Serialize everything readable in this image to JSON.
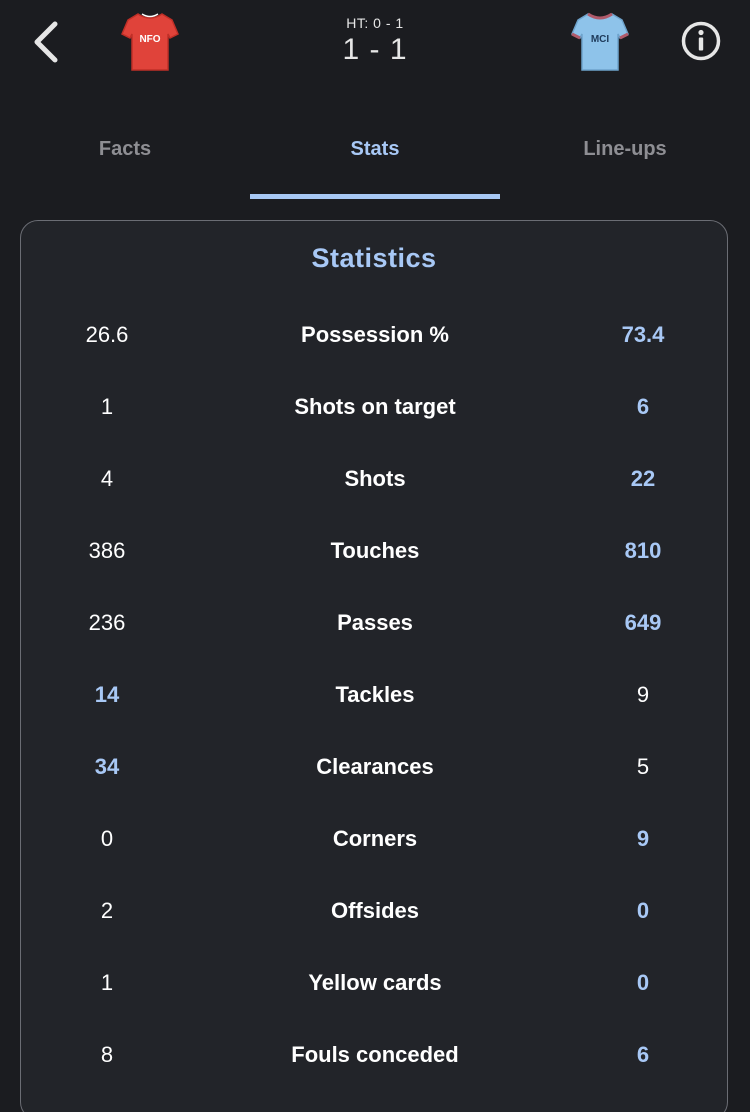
{
  "header": {
    "halftime": "HT: 0 - 1",
    "score": "1 - 1",
    "home_team": {
      "code": "NFO",
      "shirt_color": "#e0433a",
      "trim_color": "#c02f27"
    },
    "away_team": {
      "code": "MCI",
      "shirt_color": "#8ec3ea",
      "trim_color": "#b05a6a"
    },
    "back_icon": "chevron-left-icon",
    "info_icon": "info-circle-icon"
  },
  "tabs": [
    {
      "label": "Facts",
      "active": false
    },
    {
      "label": "Stats",
      "active": true
    },
    {
      "label": "Line-ups",
      "active": false
    }
  ],
  "statistics": {
    "title": "Statistics",
    "accent_color": "#a8c8f5",
    "rows": [
      {
        "label": "Possession %",
        "home": "26.6",
        "away": "73.4",
        "leader": "away"
      },
      {
        "label": "Shots on target",
        "home": "1",
        "away": "6",
        "leader": "away"
      },
      {
        "label": "Shots",
        "home": "4",
        "away": "22",
        "leader": "away"
      },
      {
        "label": "Touches",
        "home": "386",
        "away": "810",
        "leader": "away"
      },
      {
        "label": "Passes",
        "home": "236",
        "away": "649",
        "leader": "away"
      },
      {
        "label": "Tackles",
        "home": "14",
        "away": "9",
        "leader": "home"
      },
      {
        "label": "Clearances",
        "home": "34",
        "away": "5",
        "leader": "home"
      },
      {
        "label": "Corners",
        "home": "0",
        "away": "9",
        "leader": "away"
      },
      {
        "label": "Offsides",
        "home": "2",
        "away": "0",
        "leader": "away"
      },
      {
        "label": "Yellow cards",
        "home": "1",
        "away": "0",
        "leader": "away"
      },
      {
        "label": "Fouls conceded",
        "home": "8",
        "away": "6",
        "leader": "away"
      }
    ]
  }
}
